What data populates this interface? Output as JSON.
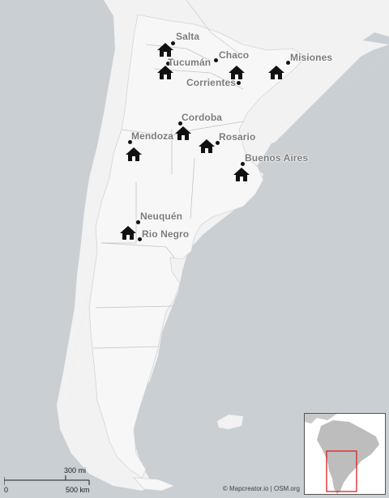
{
  "provinces": [
    {
      "id": "salta",
      "name": "Salta"
    },
    {
      "id": "tucuman",
      "name": "Tucumán"
    },
    {
      "id": "chaco",
      "name": "Chaco"
    },
    {
      "id": "corrientes",
      "name": "Corrientes"
    },
    {
      "id": "misiones",
      "name": "Misiones"
    },
    {
      "id": "cordoba",
      "name": "Cordoba"
    },
    {
      "id": "mendoza",
      "name": "Mendoza"
    },
    {
      "id": "rosario",
      "name": "Rosario"
    },
    {
      "id": "buenos-aires",
      "name": "Buenos Aires"
    },
    {
      "id": "neuquen",
      "name": "Neuquén"
    },
    {
      "id": "rio-negro",
      "name": "Rio Negro"
    }
  ],
  "icons": {
    "marker": "house-icon"
  },
  "scale_bar": {
    "imperial": "300 mi",
    "metric": "500 km",
    "zero": "0"
  },
  "attribution": "© Mapcreator.io | OSM.org",
  "colors": {
    "land": "#f2f2f2",
    "water": "#c9cfd3",
    "border": "#bdbdbd",
    "marker": "#111111",
    "label": "#7b7b7b",
    "highlight": "#e02020"
  }
}
